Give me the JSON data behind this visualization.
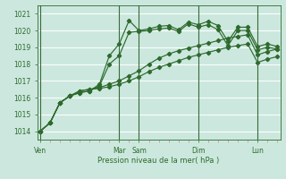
{
  "xlabel": "Pression niveau de la mer( hPa )",
  "bg_color": "#cce8de",
  "grid_color": "#ffffff",
  "line_color": "#2d6a2d",
  "tick_label_color": "#2d6a2d",
  "ylim": [
    1013.5,
    1021.5
  ],
  "yticks": [
    1014,
    1015,
    1016,
    1017,
    1018,
    1019,
    1020,
    1021
  ],
  "day_labels": [
    "Ven",
    "Mar",
    "Sam",
    "Dim",
    "Lun"
  ],
  "day_positions": [
    0,
    8,
    10,
    16,
    22
  ],
  "xlim": [
    -0.3,
    24.3
  ],
  "series": [
    [
      1014.0,
      1014.5,
      1015.7,
      1016.1,
      1016.3,
      1016.4,
      1016.8,
      1018.5,
      1019.2,
      1020.6,
      1020.0,
      1020.1,
      1020.25,
      1020.3,
      1020.05,
      1020.5,
      1020.35,
      1020.55,
      1020.3,
      1019.35,
      1020.2,
      1020.2,
      1019.05,
      1019.2,
      1019.05
    ],
    [
      1014.0,
      1014.5,
      1015.7,
      1016.1,
      1016.3,
      1016.4,
      1016.7,
      1018.0,
      1018.5,
      1019.9,
      1019.95,
      1020.0,
      1020.1,
      1020.15,
      1019.95,
      1020.4,
      1020.2,
      1020.35,
      1020.05,
      1019.1,
      1020.0,
      1020.0,
      1018.85,
      1019.0,
      1018.9
    ],
    [
      1014.0,
      1014.5,
      1015.7,
      1016.1,
      1016.4,
      1016.5,
      1016.6,
      1016.8,
      1017.0,
      1017.3,
      1017.6,
      1018.0,
      1018.35,
      1018.6,
      1018.8,
      1018.95,
      1019.1,
      1019.25,
      1019.4,
      1019.55,
      1019.65,
      1019.75,
      1018.55,
      1018.75,
      1018.9
    ],
    [
      1014.0,
      1014.5,
      1015.7,
      1016.1,
      1016.4,
      1016.5,
      1016.55,
      1016.65,
      1016.8,
      1017.0,
      1017.25,
      1017.55,
      1017.8,
      1018.0,
      1018.2,
      1018.4,
      1018.55,
      1018.7,
      1018.85,
      1019.0,
      1019.1,
      1019.2,
      1018.1,
      1018.3,
      1018.45
    ]
  ]
}
